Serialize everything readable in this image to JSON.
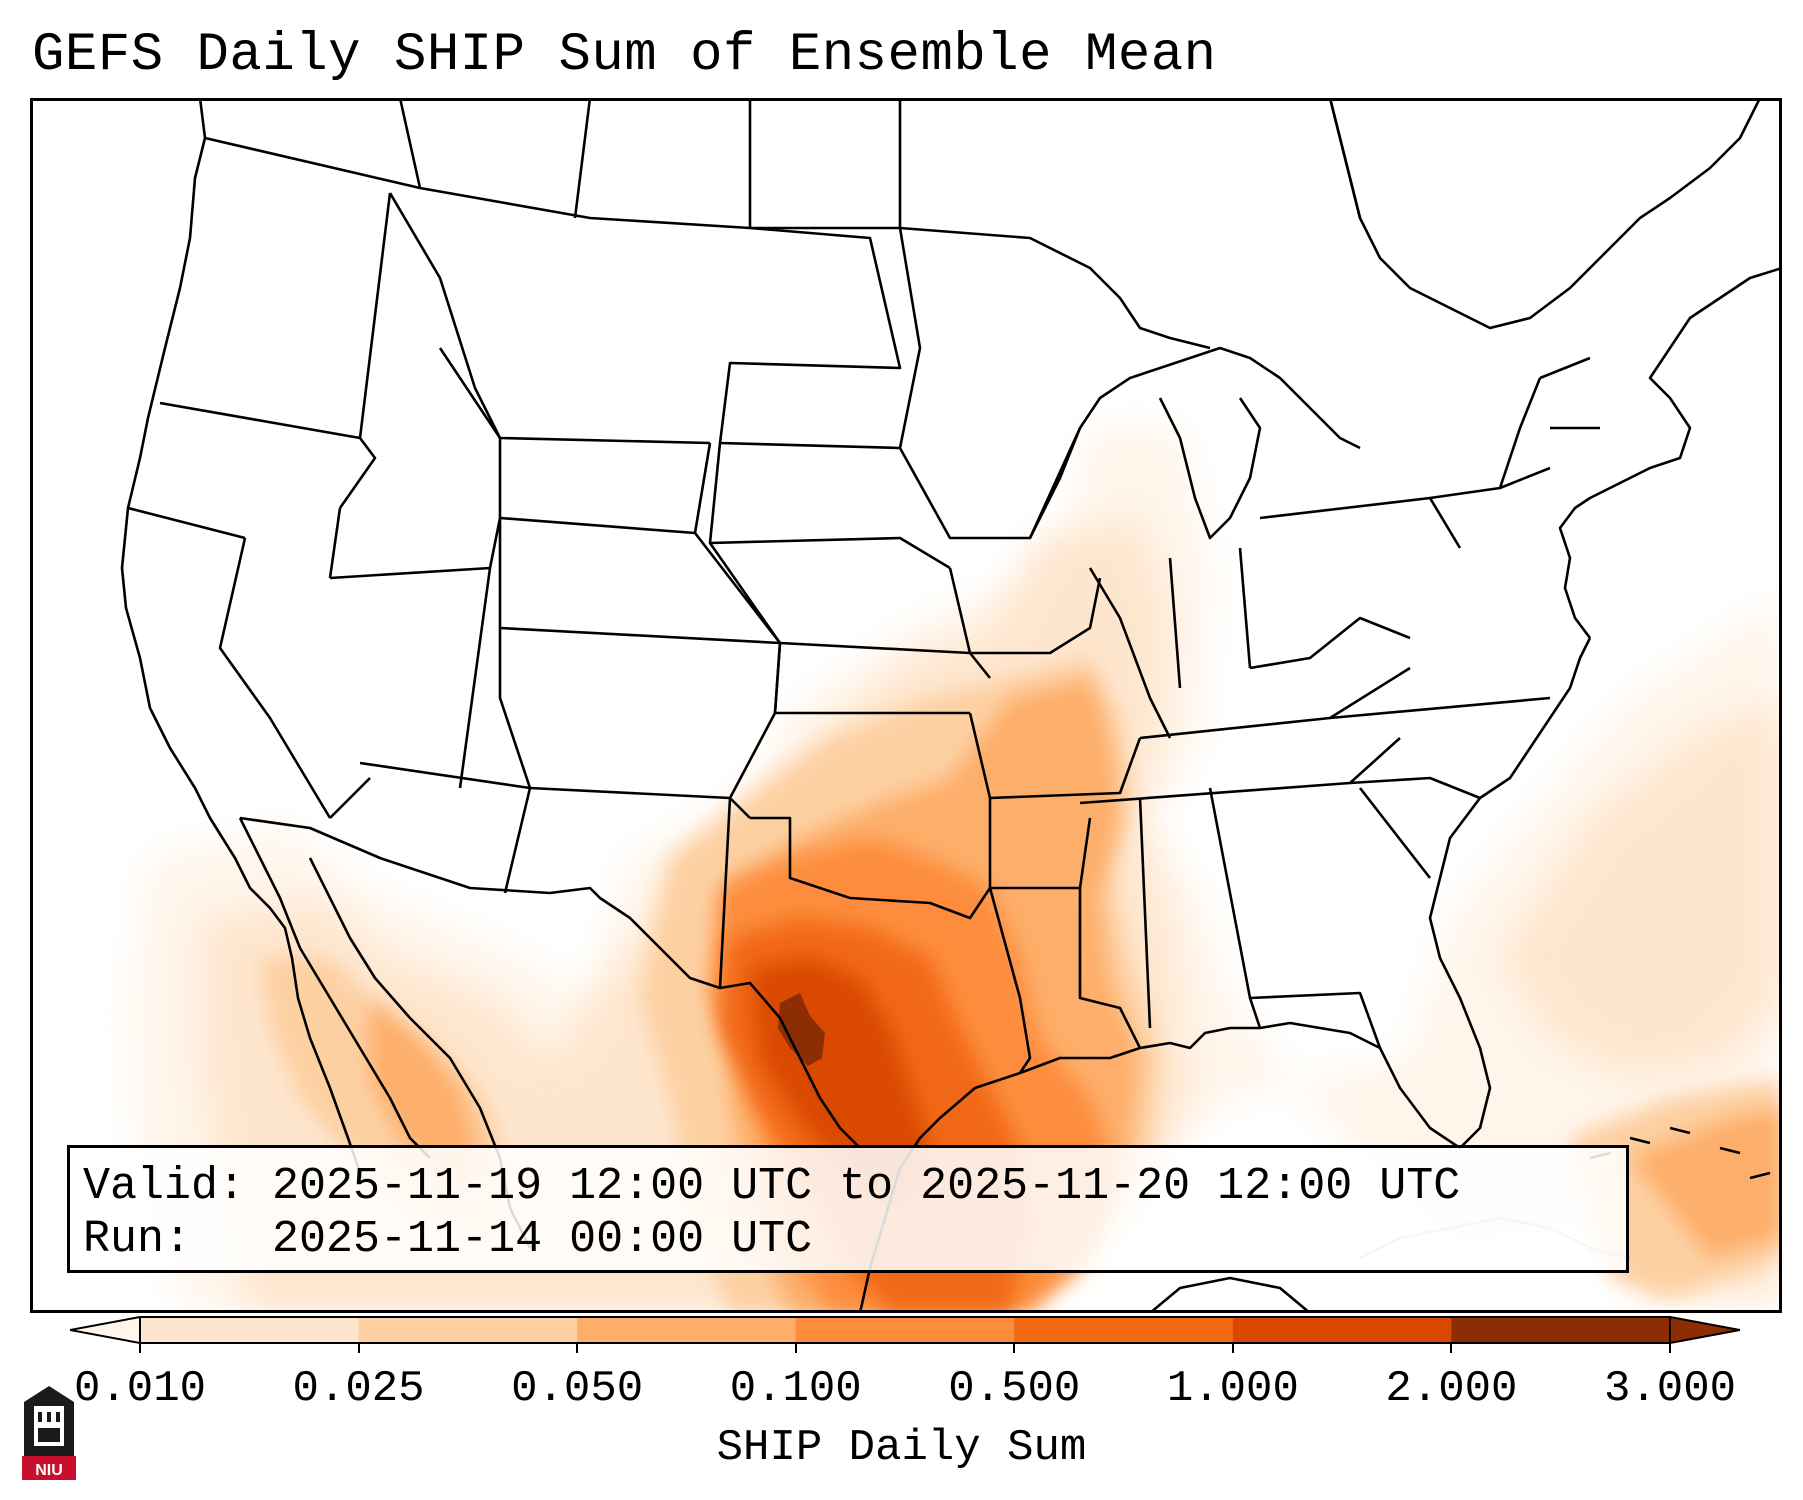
{
  "title": "GEFS Daily SHIP Sum of Ensemble Mean",
  "info": {
    "valid_line": "Valid: 2025-11-19 12:00 UTC to 2025-11-20 12:00 UTC",
    "run_line": "Run:   2025-11-14 00:00 UTC"
  },
  "colorbar": {
    "label": "SHIP Daily Sum",
    "levels": [
      "0.010",
      "0.025",
      "0.050",
      "0.100",
      "0.500",
      "1.000",
      "2.000",
      "3.000"
    ],
    "colors": [
      "#fff5eb",
      "#fee6ce",
      "#fdd0a2",
      "#fdae6b",
      "#fd8d3c",
      "#f16913",
      "#d94801",
      "#8c2d04"
    ],
    "extend": "both"
  },
  "map": {
    "region": "Continental United States",
    "ocean_color": "#ffffff",
    "land_color": "#ffffff",
    "border_color": "#000000"
  },
  "logo": {
    "text": "NIU",
    "icon": "niu-tower-logo-icon"
  }
}
